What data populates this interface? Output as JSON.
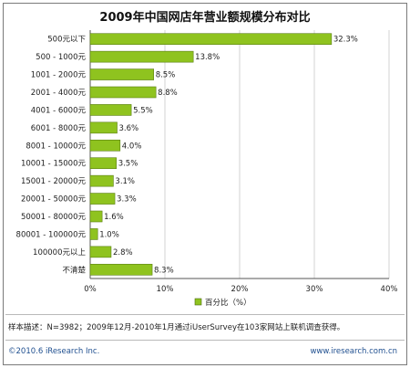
{
  "chart_data": {
    "type": "bar",
    "orientation": "horizontal",
    "title": "2009年中国网店年营业额规模分布对比",
    "categories": [
      "500元以下",
      "500 - 1000元",
      "1001 - 2000元",
      "2001 - 4000元",
      "4001 - 6000元",
      "6001 - 8000元",
      "8001 - 10000元",
      "10001 - 15000元",
      "15001 - 20000元",
      "20001 - 50000元",
      "50001 - 80000元",
      "80001 - 100000元",
      "100000元以上",
      "不清楚"
    ],
    "value_labels": [
      "32.3%",
      "13.8%",
      "8.5%",
      "8.8%",
      "5.5%",
      "3.6%",
      "4.0%",
      "3.5%",
      "3.1%",
      "3.3%",
      "1.6%",
      "1.0%",
      "2.8%",
      "8.3%"
    ],
    "series": [
      {
        "name": "百分比（%）",
        "values": [
          32.3,
          13.8,
          8.5,
          8.8,
          5.5,
          3.6,
          4.0,
          3.5,
          3.1,
          3.3,
          1.6,
          1.0,
          2.8,
          8.3
        ]
      }
    ],
    "xlim": [
      0,
      40
    ],
    "xticks": [
      "0%",
      "10%",
      "20%",
      "30%",
      "40%"
    ],
    "grid": true,
    "legend_position": "bottom",
    "bar_color": "#8fc31f"
  },
  "footer": {
    "note": "样本描述：N=3982；2009年12月-2010年1月通过iUserSurvey在103家网站上联机调查获得。",
    "copyright": "©2010.6 iResearch Inc.",
    "website": "www.iresearch.com.cn"
  }
}
